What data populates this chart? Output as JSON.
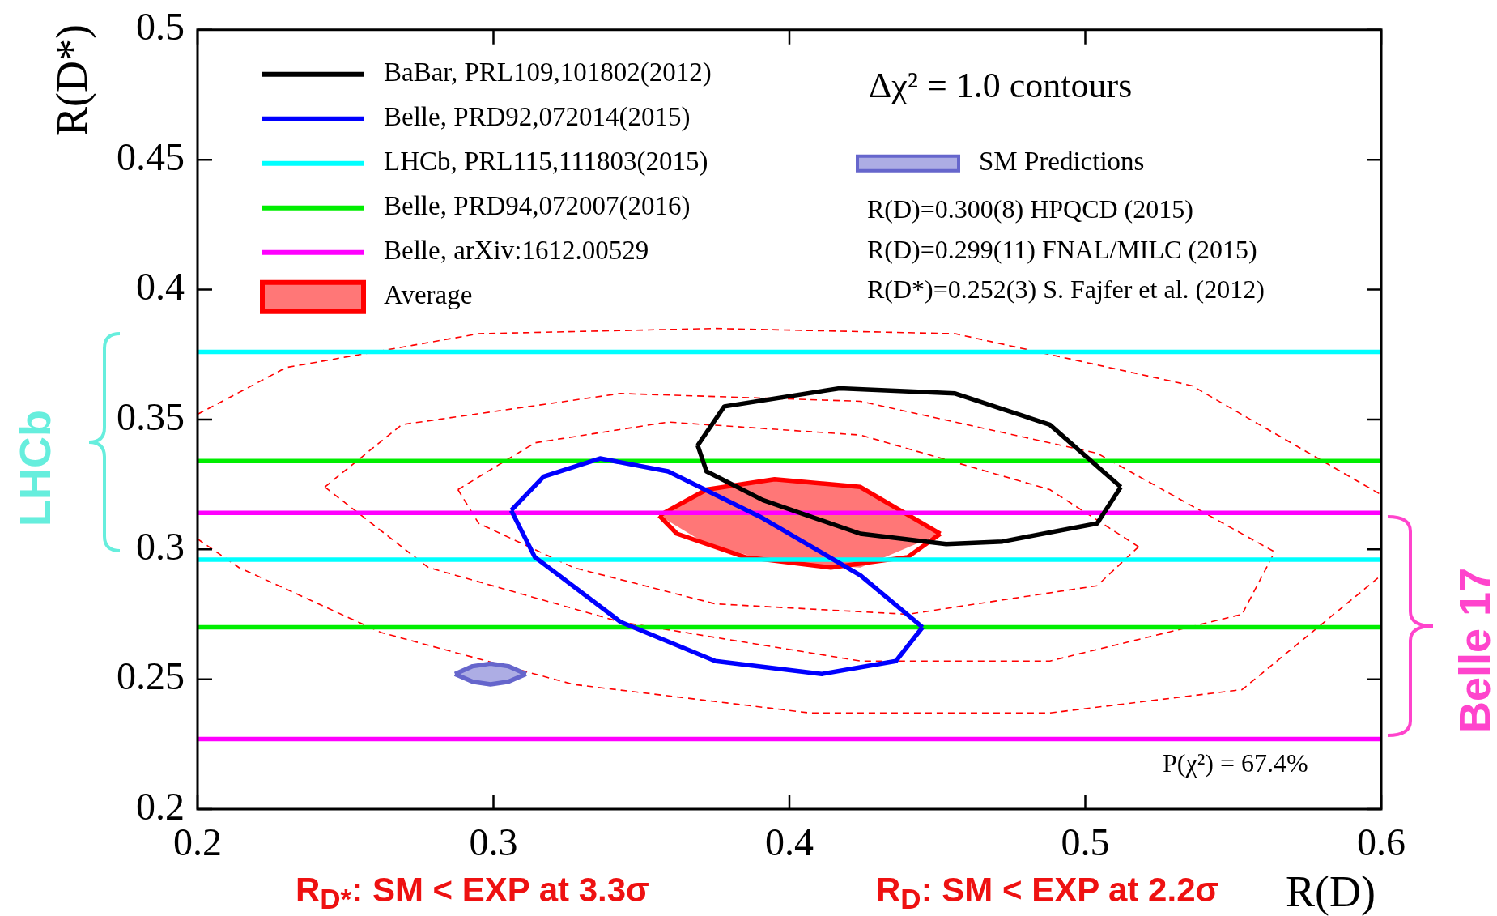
{
  "chart_data": {
    "type": "line",
    "xlabel": "R(D)",
    "ylabel": "R(D*)",
    "xlim": [
      0.2,
      0.6
    ],
    "xticks": [
      0.2,
      0.3,
      0.4,
      0.5,
      0.6
    ],
    "ylim": [
      0.2,
      0.5
    ],
    "yticks": [
      0.2,
      0.25,
      0.3,
      0.35,
      0.4,
      0.45,
      0.5
    ],
    "grid": false,
    "legend": "top left",
    "marker": "none",
    "annotations": [
      "Δχ² = 1.0 contours",
      "R(D)=0.300(8) HPQCD (2015)",
      "R(D)=0.299(11) FNAL/MILC (2015)",
      "R(D*)=0.252(3) S. Fajfer et al. (2012)",
      "P(χ²) = 67.4%",
      "LHCb",
      "Belle 17",
      "R$_{D*}$: SM < EXP at 3.3σ",
      "R$_{D}$: SM < EXP at 2.2σ"
    ],
    "series": [
      {
        "name": "BaBar, PRL109,101802(2012)",
        "color": "#000000",
        "line_style": "solid",
        "x": [
          0.369,
          0.378,
          0.417,
          0.456,
          0.488,
          0.512
        ],
        "values": [
          0.34,
          0.355,
          0.362,
          0.36,
          0.348,
          0.324
        ]
      },
      {
        "color": "#000000",
        "line_style": "solid",
        "x": [
          0.369,
          0.372,
          0.391,
          0.424,
          0.453,
          0.472,
          0.504,
          0.512
        ],
        "values": [
          0.34,
          0.33,
          0.319,
          0.306,
          0.302,
          0.303,
          0.31,
          0.324
        ]
      },
      {
        "name": "Belle, PRD92,072014(2015)",
        "color": "#0000ff",
        "line_style": "solid",
        "x": [
          0.306,
          0.317,
          0.336,
          0.359,
          0.391,
          0.424,
          0.445
        ],
        "values": [
          0.315,
          0.328,
          0.335,
          0.33,
          0.312,
          0.29,
          0.27
        ]
      },
      {
        "color": "#0000ff",
        "line_style": "solid",
        "x": [
          0.306,
          0.314,
          0.343,
          0.375,
          0.411,
          0.436,
          0.445
        ],
        "values": [
          0.315,
          0.297,
          0.272,
          0.257,
          0.252,
          0.257,
          0.27
        ]
      },
      {
        "name": "LHCb, PRL115,111803(2015)",
        "color": "#00ffff",
        "line_style": "solid",
        "x": [
          0.2,
          0.6
        ],
        "values": [
          0.376,
          0.376
        ]
      },
      {
        "color": "#00ffff",
        "line_style": "solid",
        "x": [
          0.2,
          0.6
        ],
        "values": [
          0.296,
          0.296
        ]
      },
      {
        "name": "Belle, PRD94,072007(2016)",
        "color": "#00ee00",
        "line_style": "solid",
        "x": [
          0.2,
          0.6
        ],
        "values": [
          0.334,
          0.334
        ]
      },
      {
        "color": "#00ee00",
        "line_style": "solid",
        "x": [
          0.2,
          0.6
        ],
        "values": [
          0.27,
          0.27
        ]
      },
      {
        "name": "Belle, arXiv:1612.00529",
        "color": "#ff00ff",
        "line_style": "solid",
        "x": [
          0.2,
          0.6
        ],
        "values": [
          0.314,
          0.314
        ]
      },
      {
        "color": "#ff00ff",
        "line_style": "solid",
        "x": [
          0.2,
          0.6
        ],
        "values": [
          0.227,
          0.227
        ]
      },
      {
        "name": "Average",
        "color": "#ff0000",
        "line_style": "solid",
        "x": [
          0.356,
          0.372,
          0.395,
          0.424,
          0.451
        ],
        "values": [
          0.313,
          0.323,
          0.327,
          0.324,
          0.306
        ],
        "lower": [
          0.313,
          0.302,
          0.295,
          0.293,
          0.306
        ],
        "upper": [
          0.313,
          0.323,
          0.327,
          0.324,
          0.306
        ]
      },
      {
        "color": "#ff0000",
        "line_style": "solid",
        "x": [
          0.356,
          0.362,
          0.385,
          0.414,
          0.44,
          0.451
        ],
        "values": [
          0.313,
          0.306,
          0.297,
          0.293,
          0.297,
          0.306
        ]
      },
      {
        "name": "SM Predictions",
        "color": "#6666cc",
        "line_style": "solid",
        "x": [
          0.287,
          0.293,
          0.299,
          0.305,
          0.311
        ],
        "values": [
          0.252,
          0.255,
          0.256,
          0.255,
          0.252
        ],
        "lower": [
          0.252,
          0.249,
          0.248,
          0.249,
          0.252
        ],
        "upper": [
          0.252,
          0.255,
          0.256,
          0.255,
          0.252
        ]
      },
      {
        "color": "#6666cc",
        "line_style": "solid",
        "x": [
          0.287,
          0.293,
          0.299,
          0.305,
          0.311
        ],
        "values": [
          0.252,
          0.249,
          0.248,
          0.249,
          0.252
        ]
      },
      {
        "color": "#ff0000",
        "line_style": "dashed",
        "x": [
          0.288,
          0.314,
          0.359,
          0.424,
          0.488,
          0.518
        ],
        "values": [
          0.323,
          0.341,
          0.349,
          0.344,
          0.323,
          0.301
        ]
      },
      {
        "color": "#ff0000",
        "line_style": "dashed",
        "x": [
          0.288,
          0.295,
          0.327,
          0.375,
          0.44,
          0.504,
          0.518
        ],
        "values": [
          0.323,
          0.31,
          0.293,
          0.279,
          0.275,
          0.286,
          0.301
        ]
      },
      {
        "color": "#ff0000",
        "line_style": "dashed",
        "x": [
          0.243,
          0.269,
          0.343,
          0.424,
          0.504,
          0.564
        ],
        "values": [
          0.324,
          0.348,
          0.36,
          0.357,
          0.337,
          0.299
        ]
      },
      {
        "color": "#ff0000",
        "line_style": "dashed",
        "x": [
          0.243,
          0.278,
          0.343,
          0.424,
          0.488,
          0.553,
          0.564
        ],
        "values": [
          0.324,
          0.293,
          0.272,
          0.257,
          0.257,
          0.275,
          0.299
        ]
      },
      {
        "color": "#ff0000",
        "line_style": "dashed",
        "x": [
          0.2,
          0.23,
          0.295,
          0.375,
          0.456,
          0.536,
          0.6
        ],
        "values": [
          0.352,
          0.37,
          0.383,
          0.385,
          0.383,
          0.363,
          0.321
        ]
      },
      {
        "color": "#ff0000",
        "line_style": "dashed",
        "x": [
          0.2,
          0.214,
          0.262,
          0.327,
          0.407,
          0.488,
          0.553,
          0.6
        ],
        "values": [
          0.304,
          0.293,
          0.268,
          0.248,
          0.237,
          0.237,
          0.246,
          0.29
        ]
      }
    ]
  }
}
